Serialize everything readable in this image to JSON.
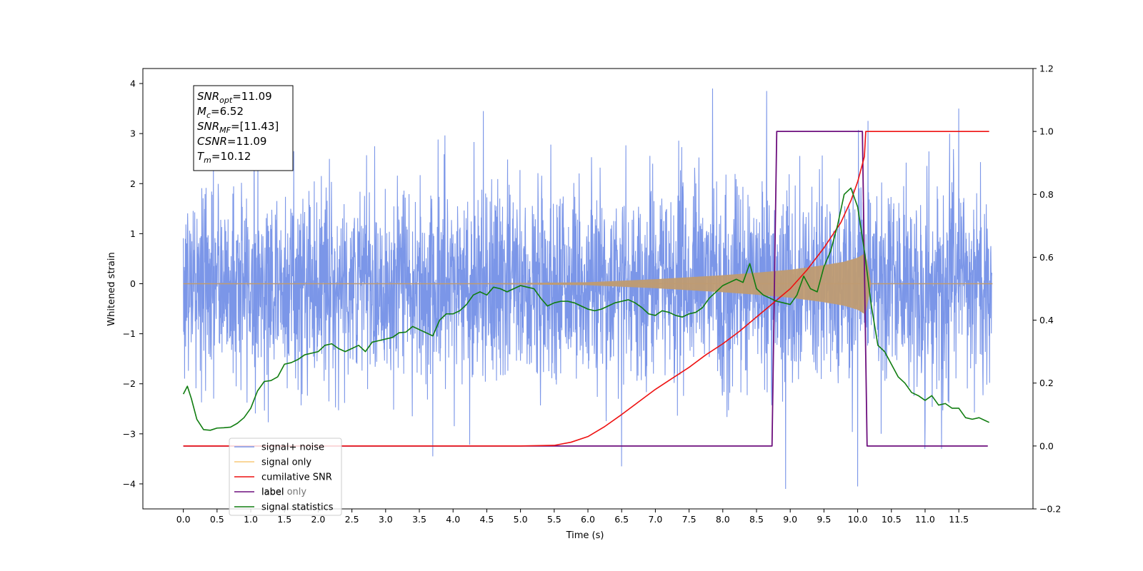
{
  "chart_data": {
    "type": "line",
    "title": "",
    "xlabel": "Time (s)",
    "ylabel": "Whitened strain",
    "xlim": [
      -0.6,
      12.6
    ],
    "ylim": [
      -4.5,
      4.3
    ],
    "y2lim": [
      -0.2,
      1.2
    ],
    "x_ticks": [
      "0.0",
      "0.5",
      "1.0",
      "1.5",
      "2.0",
      "2.5",
      "3.0",
      "3.5",
      "4.0",
      "4.5",
      "5.0",
      "5.5",
      "6.0",
      "6.5",
      "7.0",
      "7.5",
      "8.0",
      "8.5",
      "9.0",
      "9.5",
      "10.0",
      "10.5",
      "11.0",
      "11.5"
    ],
    "y_ticks": [
      "4",
      "3",
      "2",
      "1",
      "0",
      "−1",
      "−2",
      "−3",
      "−4"
    ],
    "y2_ticks": [
      "1.2",
      "1.0",
      "0.8",
      "0.6",
      "0.4",
      "0.2",
      "0.0",
      "−0.2"
    ],
    "legend_position": "lower-left",
    "colors": {
      "signal_noise": "#7b96e8",
      "signal_only": "#bf9b72",
      "signal_only_legend": "#f8c878",
      "cumulative_snr": "#ee1111",
      "label": "#6d0f7d",
      "signal_statistics": "#107d10"
    },
    "annotation": {
      "lines": [
        {
          "base": "SNR",
          "sub": "opt",
          "value": "=11.09"
        },
        {
          "base": "M",
          "sub": "c",
          "value": "=6.52"
        },
        {
          "base": "SNR",
          "sub": "MF",
          "value": "=[11.43]"
        },
        {
          "base": "CSNR",
          "sub": "",
          "value": "=11.09"
        },
        {
          "base": "T",
          "sub": "m",
          "value": "=10.12"
        }
      ]
    },
    "series": [
      {
        "name": "signal+ noise",
        "axis": "left",
        "kind": "noise",
        "x_range": [
          0.0,
          11.99
        ],
        "typical_range": [
          -2.2,
          2.4
        ],
        "extremes": [
          {
            "x": 3.7,
            "y": -3.45
          },
          {
            "x": 4.45,
            "y": 3.45
          },
          {
            "x": 6.5,
            "y": -3.65
          },
          {
            "x": 7.85,
            "y": 3.9
          },
          {
            "x": 8.65,
            "y": 3.85
          },
          {
            "x": 8.93,
            "y": -4.1
          },
          {
            "x": 10.0,
            "y": -4.05
          },
          {
            "x": 11.5,
            "y": 3.5
          }
        ]
      },
      {
        "name": "signal only",
        "axis": "left",
        "kind": "chirp-envelope",
        "x": [
          0.0,
          4.0,
          6.0,
          7.0,
          7.5,
          8.0,
          8.5,
          9.0,
          9.5,
          9.8,
          10.0,
          10.12,
          10.2,
          12.0
        ],
        "amplitude": [
          0.0,
          0.0,
          0.03,
          0.09,
          0.13,
          0.17,
          0.22,
          0.28,
          0.37,
          0.44,
          0.52,
          0.62,
          0.0,
          0.0
        ]
      },
      {
        "name": "cumilative SNR",
        "axis": "right",
        "x": [
          0.0,
          5.0,
          5.5,
          5.75,
          6.0,
          6.25,
          6.5,
          6.75,
          7.0,
          7.25,
          7.5,
          7.75,
          8.0,
          8.25,
          8.5,
          8.75,
          9.0,
          9.25,
          9.5,
          9.75,
          9.9,
          10.0,
          10.1,
          10.12,
          11.95
        ],
        "values": [
          0.0,
          0.0,
          0.002,
          0.012,
          0.03,
          0.062,
          0.1,
          0.14,
          0.18,
          0.215,
          0.25,
          0.29,
          0.325,
          0.365,
          0.41,
          0.455,
          0.5,
          0.56,
          0.63,
          0.71,
          0.78,
          0.84,
          0.92,
          1.0,
          1.0
        ]
      },
      {
        "name": "label",
        "axis": "right",
        "x": [
          0.0,
          8.73,
          8.8,
          10.07,
          10.14,
          11.93
        ],
        "values": [
          0.0,
          0.0,
          1.0,
          1.0,
          0.0,
          0.0
        ]
      },
      {
        "name": "label only",
        "axis": "right",
        "hidden_in_plot": true
      },
      {
        "name": "signal statistics",
        "axis": "right",
        "x": [
          0.0,
          0.06,
          0.12,
          0.2,
          0.3,
          0.4,
          0.5,
          0.6,
          0.7,
          0.8,
          0.9,
          1.0,
          1.1,
          1.2,
          1.3,
          1.4,
          1.5,
          1.6,
          1.7,
          1.8,
          1.9,
          2.0,
          2.1,
          2.2,
          2.3,
          2.4,
          2.5,
          2.6,
          2.7,
          2.8,
          2.9,
          3.0,
          3.1,
          3.2,
          3.3,
          3.4,
          3.5,
          3.6,
          3.7,
          3.8,
          3.9,
          4.0,
          4.1,
          4.2,
          4.3,
          4.4,
          4.5,
          4.6,
          4.7,
          4.8,
          4.9,
          5.0,
          5.1,
          5.2,
          5.3,
          5.4,
          5.5,
          5.6,
          5.7,
          5.8,
          5.9,
          6.0,
          6.1,
          6.2,
          6.3,
          6.4,
          6.5,
          6.6,
          6.7,
          6.8,
          6.9,
          7.0,
          7.1,
          7.2,
          7.3,
          7.4,
          7.5,
          7.6,
          7.7,
          7.8,
          7.9,
          8.0,
          8.1,
          8.2,
          8.3,
          8.4,
          8.5,
          8.6,
          8.7,
          8.8,
          8.9,
          9.0,
          9.1,
          9.2,
          9.3,
          9.4,
          9.5,
          9.6,
          9.7,
          9.8,
          9.9,
          10.0,
          10.1,
          10.2,
          10.3,
          10.4,
          10.5,
          10.6,
          10.7,
          10.8,
          10.9,
          11.0,
          11.1,
          11.2,
          11.3,
          11.4,
          11.5,
          11.6,
          11.7,
          11.8,
          11.9,
          11.95
        ],
        "values": [
          0.165,
          0.19,
          0.15,
          0.085,
          0.052,
          0.05,
          0.057,
          0.058,
          0.06,
          0.072,
          0.09,
          0.12,
          0.175,
          0.205,
          0.208,
          0.22,
          0.26,
          0.265,
          0.275,
          0.29,
          0.295,
          0.3,
          0.32,
          0.325,
          0.31,
          0.3,
          0.31,
          0.32,
          0.3,
          0.33,
          0.335,
          0.34,
          0.345,
          0.36,
          0.362,
          0.38,
          0.37,
          0.36,
          0.35,
          0.4,
          0.42,
          0.42,
          0.43,
          0.45,
          0.48,
          0.49,
          0.48,
          0.505,
          0.5,
          0.49,
          0.5,
          0.51,
          0.505,
          0.5,
          0.47,
          0.445,
          0.455,
          0.46,
          0.46,
          0.455,
          0.445,
          0.435,
          0.43,
          0.435,
          0.445,
          0.455,
          0.46,
          0.465,
          0.455,
          0.44,
          0.42,
          0.415,
          0.43,
          0.425,
          0.415,
          0.41,
          0.42,
          0.425,
          0.44,
          0.47,
          0.49,
          0.51,
          0.52,
          0.53,
          0.52,
          0.58,
          0.5,
          0.48,
          0.47,
          0.46,
          0.455,
          0.45,
          0.48,
          0.54,
          0.5,
          0.49,
          0.57,
          0.62,
          0.7,
          0.8,
          0.82,
          0.76,
          0.62,
          0.45,
          0.32,
          0.3,
          0.26,
          0.22,
          0.2,
          0.17,
          0.16,
          0.145,
          0.16,
          0.13,
          0.135,
          0.12,
          0.12,
          0.09,
          0.085,
          0.09,
          0.08,
          0.075
        ]
      }
    ]
  }
}
